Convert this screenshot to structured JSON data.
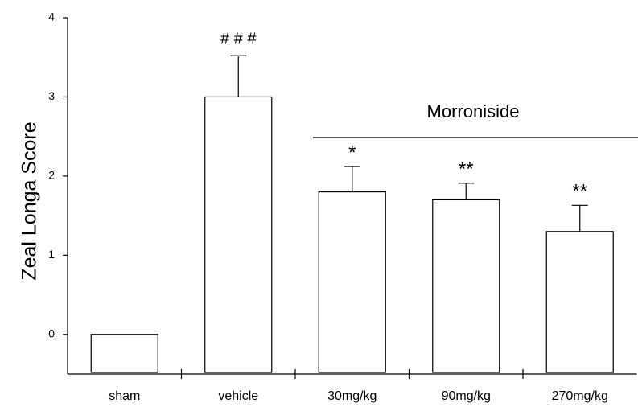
{
  "chart_data": {
    "type": "bar",
    "ylabel": "Zeal Longa Score",
    "categories": [
      "sham",
      "vehicle",
      "30mg/kg",
      "90mg/kg",
      "270mg/kg"
    ],
    "values": [
      0,
      3.0,
      1.8,
      1.7,
      1.3
    ],
    "errors": [
      0,
      0.52,
      0.32,
      0.21,
      0.33
    ],
    "significance": [
      null,
      "# # #",
      "*",
      "**",
      "**"
    ],
    "group_label": "Morroniside",
    "color": "#ffffff",
    "ylim": [
      -0.5,
      4
    ],
    "yticks": [
      0,
      1,
      2,
      3,
      4
    ],
    "grid": false
  }
}
